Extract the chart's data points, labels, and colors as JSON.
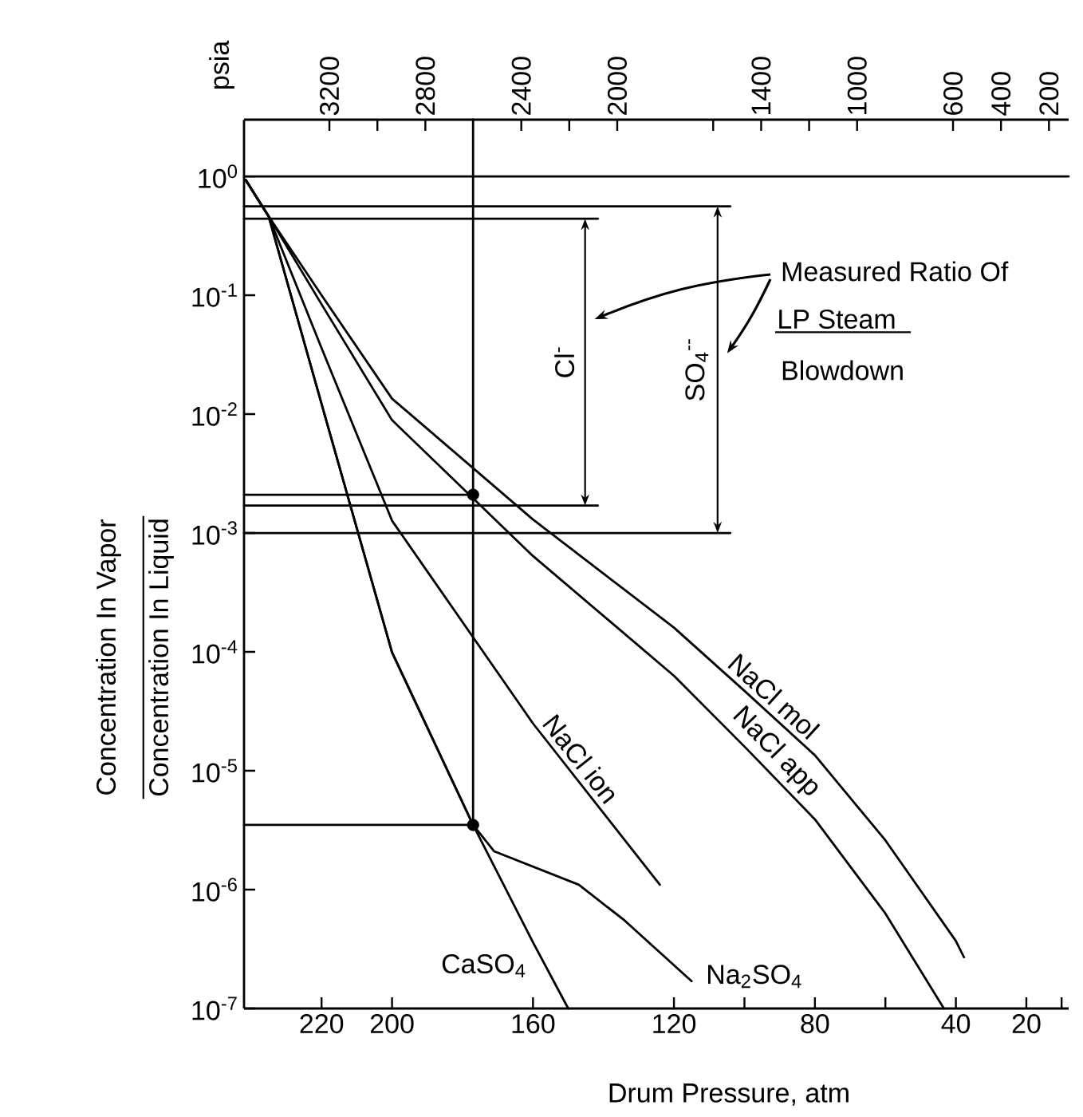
{
  "chart_data": {
    "type": "line",
    "xlabel": "Drum Pressure, atm",
    "x2label": "psia",
    "ylabel": "Concentration In Vapor",
    "log": "y",
    "xlim": [
      242,
      8
    ],
    "ylim": [
      1e-07,
      3
    ],
    "xticks": [
      220,
      200,
      160,
      120,
      {
        "value": 100,
        "label": null
      },
      80,
      {
        "value": 60,
        "label": null
      },
      40,
      20,
      {
        "value": 10,
        "label": null
      }
    ],
    "x2lim": [
      3556,
      118
    ],
    "x2ticks": [
      3200,
      {
        "value": 3000,
        "label": null
      },
      2800,
      2400,
      {
        "value": 2200,
        "label": null
      },
      2000,
      {
        "value": 1600,
        "label": null
      },
      1400,
      {
        "value": 1200,
        "label": null
      },
      1000,
      600,
      400,
      200
    ],
    "yticks": [
      {
        "value": 1e-07,
        "label": "10$^{-7}$"
      },
      {
        "value": 1e-06,
        "label": "10$^{-6}$"
      },
      {
        "value": 1e-05,
        "label": "10$^{-5}$"
      },
      {
        "value": 0.0001,
        "label": "10$^{-4}$"
      },
      {
        "value": 0.001,
        "label": "10$^{-3}$"
      },
      {
        "value": 0.01,
        "label": "10$^{-2}$"
      },
      {
        "value": 0.1,
        "label": "10$^{-1}$"
      },
      {
        "value": 1,
        "label": "10$^{0}$"
      }
    ],
    "ref_lines": [
      {
        "axis": "y",
        "value": 1,
        "color": "#000000"
      }
    ],
    "series": [
      {
        "name": "NaCl mol",
        "color": "#000000",
        "x": [
          241.5,
          235,
          220,
          200,
          160,
          120,
          100,
          80,
          60,
          40,
          37.7
        ],
        "values": [
          0.93,
          0.46,
          0.1,
          0.0135,
          0.0013,
          0.00016,
          4.7e-05,
          1.35e-05,
          2.6e-06,
          3.7e-07,
          2.7e-07
        ]
      },
      {
        "name": "NaCl app",
        "color": "#000000",
        "x": [
          241.5,
          235,
          220,
          200,
          160,
          120,
          100,
          80,
          60,
          43.4
        ],
        "values": [
          0.93,
          0.46,
          0.084,
          0.0089,
          0.00064,
          6.3e-05,
          1.6e-05,
          3.9e-06,
          6.3e-07,
          1e-07
        ]
      },
      {
        "name": "NaCl ion",
        "color": "#000000",
        "x": [
          241.5,
          235,
          220,
          200,
          160,
          124
        ],
        "values": [
          0.93,
          0.46,
          0.036,
          0.00127,
          2.5e-05,
          1.1e-06
        ]
      },
      {
        "name": "Na$_{2}$SO$_{4}$",
        "color": "#000000",
        "x": [
          241.5,
          235,
          220,
          200,
          177,
          171,
          147,
          134,
          115
        ],
        "values": [
          0.93,
          0.46,
          0.0122,
          9.9e-05,
          3.5e-06,
          2.1e-06,
          1.1e-06,
          5.5e-07,
          1.7e-07
        ]
      },
      {
        "name": "CaSO$_{4}$",
        "color": "#000000",
        "x": [
          241.5,
          235,
          220,
          200,
          177,
          160,
          150
        ],
        "values": [
          0.93,
          0.46,
          0.0122,
          9.9e-05,
          3.5e-06,
          3.6e-07,
          1e-07
        ]
      },
      {
        "color": "#000000",
        "x": [
          242,
          104
        ],
        "values": [
          0.56,
          0.56
        ]
      },
      {
        "color": "#000000",
        "x": [
          242,
          141.6
        ],
        "values": [
          0.44,
          0.44
        ]
      },
      {
        "color": "#000000",
        "x": [
          242,
          177
        ],
        "values": [
          0.0021,
          0.0021
        ]
      },
      {
        "color": "#000000",
        "x": [
          242,
          141.6
        ],
        "values": [
          0.0017,
          0.0017
        ]
      },
      {
        "color": "#000000",
        "x": [
          242,
          104
        ],
        "values": [
          0.001,
          0.001
        ]
      },
      {
        "color": "#000000",
        "x": [
          242,
          177
        ],
        "values": [
          3.5e-06,
          3.5e-06
        ]
      },
      {
        "color": "#000000",
        "x": [
          177,
          177
        ],
        "values": [
          3,
          3.5e-06
        ]
      },
      {
        "type": "scatter",
        "marker": "circle",
        "color": "#000000",
        "x": [
          177,
          177
        ],
        "values": [
          0.0021,
          3.5e-06
        ]
      }
    ],
    "annotations": [
      "Cl$^{-}$",
      "SO$_{4}$$^{--}$",
      "Measured Ratio Of",
      "LP Steam",
      "Blowdown",
      "Concentration In Liquid"
    ]
  }
}
